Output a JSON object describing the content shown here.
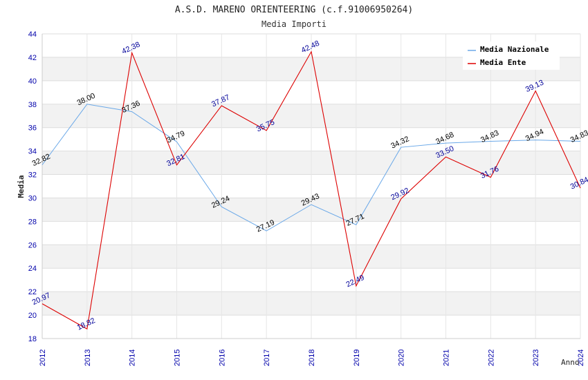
{
  "chart_data": {
    "type": "line",
    "title": "A.S.D. MARENO ORIENTEERING (c.f.91006950264)",
    "subtitle": "Media Importi",
    "xlabel": "Anno",
    "ylabel": "Media",
    "ylim": [
      18,
      44
    ],
    "yticks": [
      18,
      20,
      22,
      24,
      26,
      28,
      30,
      32,
      34,
      36,
      38,
      40,
      42,
      44
    ],
    "categories": [
      "2012",
      "2013",
      "2014",
      "2015",
      "2016",
      "2017",
      "2018",
      "2019",
      "2020",
      "2021",
      "2022",
      "2023",
      "2024"
    ],
    "grid": "horizontal bands",
    "legend_position": "top-right",
    "series": [
      {
        "name": "Media Nazionale",
        "color": "#6aa8e8",
        "label_color": "#000000",
        "values": [
          32.82,
          38.0,
          37.36,
          34.79,
          29.24,
          27.19,
          29.43,
          27.71,
          34.32,
          34.68,
          34.83,
          34.94,
          34.83
        ],
        "labels": [
          "32.82",
          "38.00",
          "37.36",
          "34.79",
          "29.24",
          "27.19",
          "29.43",
          "27.71",
          "34.32",
          "34.68",
          "34.83",
          "34.94",
          "34.83"
        ]
      },
      {
        "name": "Media Ente",
        "color": "#dd0000",
        "label_color": "#000099",
        "values": [
          20.97,
          18.82,
          42.38,
          32.81,
          37.87,
          35.75,
          42.48,
          22.49,
          29.92,
          33.5,
          31.76,
          39.13,
          30.84
        ],
        "labels": [
          "20.97",
          "18.82",
          "42.38",
          "32.81",
          "37.87",
          "35.75",
          "42.48",
          "22.49",
          "29.92",
          "33.50",
          "31.76",
          "39.13",
          "30.84"
        ]
      }
    ]
  }
}
